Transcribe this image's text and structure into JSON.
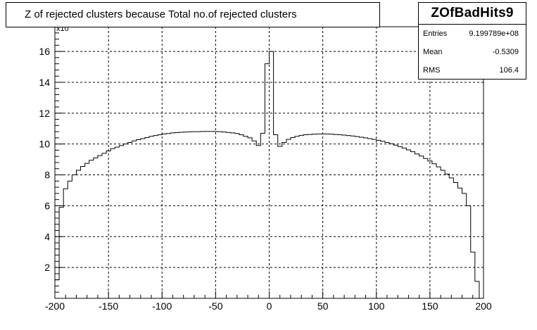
{
  "title": "Z of rejected clusters  because Total no.of rejected clusters",
  "stats": {
    "name": "ZOfBadHits9",
    "rows": [
      {
        "key": "Entries",
        "value": "9.199789e+08"
      },
      {
        "key": "Mean",
        "value": "-0.5309"
      },
      {
        "key": "RMS",
        "value": "106.4"
      }
    ]
  },
  "axis_exponent": "x10",
  "chart_data": {
    "type": "histogram",
    "title": "Z of rejected clusters  because Total no.of rejected clusters",
    "xlim": [
      -200,
      200
    ],
    "ylim": [
      0,
      17.6
    ],
    "y_scale_note": "values in units of 10^6 (axis exponent label)",
    "x_ticks": [
      -200,
      -150,
      -100,
      -50,
      0,
      50,
      100,
      150,
      200
    ],
    "y_ticks": [
      2,
      4,
      6,
      8,
      10,
      12,
      14,
      16
    ],
    "grid": true,
    "bin_width": 4,
    "bins": [
      [
        -200,
        1.2
      ],
      [
        -196,
        5.9
      ],
      [
        -192,
        7.1
      ],
      [
        -188,
        7.6
      ],
      [
        -184,
        8.0
      ],
      [
        -180,
        8.3
      ],
      [
        -176,
        8.55
      ],
      [
        -172,
        8.75
      ],
      [
        -168,
        8.95
      ],
      [
        -164,
        9.1
      ],
      [
        -160,
        9.25
      ],
      [
        -156,
        9.4
      ],
      [
        -152,
        9.55
      ],
      [
        -148,
        9.7
      ],
      [
        -144,
        9.8
      ],
      [
        -140,
        9.9
      ],
      [
        -136,
        10.0
      ],
      [
        -132,
        10.1
      ],
      [
        -128,
        10.2
      ],
      [
        -124,
        10.28
      ],
      [
        -120,
        10.35
      ],
      [
        -116,
        10.42
      ],
      [
        -112,
        10.5
      ],
      [
        -108,
        10.55
      ],
      [
        -104,
        10.6
      ],
      [
        -100,
        10.65
      ],
      [
        -96,
        10.68
      ],
      [
        -92,
        10.72
      ],
      [
        -88,
        10.74
      ],
      [
        -84,
        10.76
      ],
      [
        -80,
        10.78
      ],
      [
        -76,
        10.79
      ],
      [
        -72,
        10.8
      ],
      [
        -68,
        10.8
      ],
      [
        -64,
        10.81
      ],
      [
        -60,
        10.82
      ],
      [
        -56,
        10.82
      ],
      [
        -52,
        10.81
      ],
      [
        -48,
        10.8
      ],
      [
        -44,
        10.78
      ],
      [
        -40,
        10.75
      ],
      [
        -36,
        10.72
      ],
      [
        -32,
        10.68
      ],
      [
        -28,
        10.6
      ],
      [
        -24,
        10.5
      ],
      [
        -20,
        10.4
      ],
      [
        -16,
        10.2
      ],
      [
        -12,
        9.9
      ],
      [
        -8,
        10.7
      ],
      [
        -4,
        15.2
      ],
      [
        0,
        16.0
      ],
      [
        4,
        10.6
      ],
      [
        8,
        9.85
      ],
      [
        12,
        10.1
      ],
      [
        16,
        10.3
      ],
      [
        20,
        10.42
      ],
      [
        24,
        10.5
      ],
      [
        28,
        10.56
      ],
      [
        32,
        10.6
      ],
      [
        36,
        10.62
      ],
      [
        40,
        10.64
      ],
      [
        44,
        10.65
      ],
      [
        48,
        10.65
      ],
      [
        52,
        10.65
      ],
      [
        56,
        10.64
      ],
      [
        60,
        10.62
      ],
      [
        64,
        10.6
      ],
      [
        68,
        10.58
      ],
      [
        72,
        10.55
      ],
      [
        76,
        10.52
      ],
      [
        80,
        10.48
      ],
      [
        84,
        10.44
      ],
      [
        88,
        10.4
      ],
      [
        92,
        10.35
      ],
      [
        96,
        10.3
      ],
      [
        100,
        10.24
      ],
      [
        104,
        10.18
      ],
      [
        108,
        10.1
      ],
      [
        112,
        10.02
      ],
      [
        116,
        9.93
      ],
      [
        120,
        9.84
      ],
      [
        124,
        9.74
      ],
      [
        128,
        9.62
      ],
      [
        132,
        9.5
      ],
      [
        136,
        9.36
      ],
      [
        140,
        9.22
      ],
      [
        144,
        9.06
      ],
      [
        148,
        8.9
      ],
      [
        152,
        8.72
      ],
      [
        156,
        8.52
      ],
      [
        160,
        8.3
      ],
      [
        164,
        8.06
      ],
      [
        168,
        7.8
      ],
      [
        172,
        7.5
      ],
      [
        176,
        7.15
      ],
      [
        180,
        6.8
      ],
      [
        184,
        6.0
      ],
      [
        188,
        3.0
      ],
      [
        192,
        1.1
      ],
      [
        196,
        0.0
      ]
    ]
  }
}
